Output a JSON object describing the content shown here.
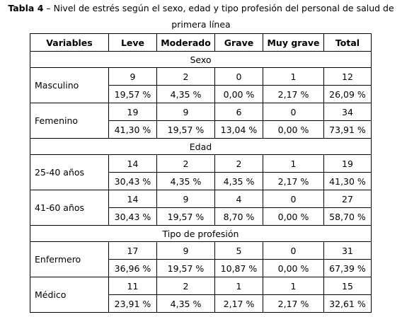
{
  "caption": {
    "label": "Tabla 4",
    "text": " – Nivel de estrés según el sexo, edad y tipo profesión del personal de salud de primera línea"
  },
  "table": {
    "headers": [
      "Variables",
      "Leve",
      "Moderado",
      "Grave",
      "Muy grave",
      "Total"
    ],
    "sections": [
      {
        "title": "Sexo",
        "rows": [
          {
            "label": "Masculino",
            "counts": [
              "9",
              "2",
              "0",
              "1",
              "12"
            ],
            "percents": [
              "19,57 %",
              "4,35 %",
              "0,00 %",
              "2,17 %",
              "26,09 %"
            ]
          },
          {
            "label": "Femenino",
            "counts": [
              "19",
              "9",
              "6",
              "0",
              "34"
            ],
            "percents": [
              "41,30 %",
              "19,57 %",
              "13,04 %",
              "0,00 %",
              "73,91 %"
            ]
          }
        ]
      },
      {
        "title": "Edad",
        "rows": [
          {
            "label": "25-40 años",
            "counts": [
              "14",
              "2",
              "2",
              "1",
              "19"
            ],
            "percents": [
              "30,43 %",
              "4,35 %",
              "4,35 %",
              "2,17 %",
              "41,30 %"
            ]
          },
          {
            "label": "41-60 años",
            "counts": [
              "14",
              "9",
              "4",
              "0",
              "27"
            ],
            "percents": [
              "30,43 %",
              "19,57 %",
              "8,70 %",
              "0,00 %",
              "58,70 %"
            ]
          }
        ]
      },
      {
        "title": "Tipo de profesión",
        "rows": [
          {
            "label": "Enfermero",
            "counts": [
              "17",
              "9",
              "5",
              "0",
              "31"
            ],
            "percents": [
              "36,96 %",
              "19,57 %",
              "10,87 %",
              "0,00 %",
              "67,39 %"
            ]
          },
          {
            "label": "Médico",
            "counts": [
              "11",
              "2",
              "1",
              "1",
              "15"
            ],
            "percents": [
              "23,91 %",
              "4,35 %",
              "2,17 %",
              "2,17 %",
              "32,61 %"
            ]
          }
        ]
      }
    ]
  }
}
